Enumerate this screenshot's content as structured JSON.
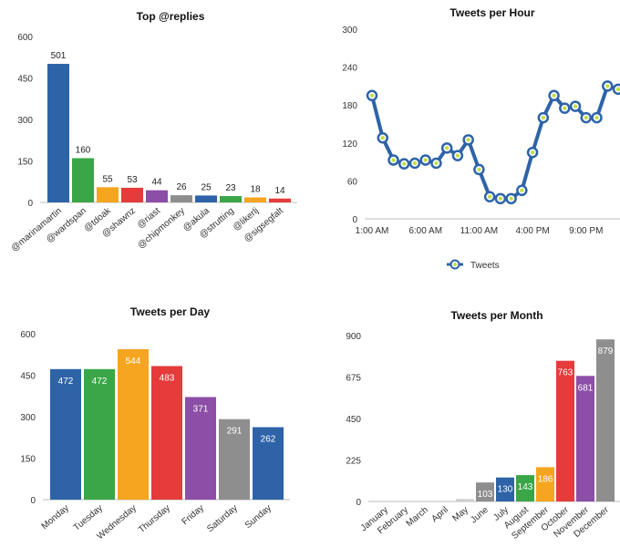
{
  "chart_data": [
    {
      "type": "bar",
      "title": "Top @replies",
      "categories": [
        "@marinamartin",
        "@wardspan",
        "@tdoak",
        "@shawnz",
        "@riast",
        "@chipmonkey",
        "@akula",
        "@strutting",
        "@likerlj",
        "@sigsegfalt"
      ],
      "values": [
        501,
        160,
        55,
        53,
        44,
        26,
        25,
        23,
        18,
        14
      ],
      "colors": [
        "#2e63a8",
        "#3aa648",
        "#f5a51f",
        "#e53b3b",
        "#8c4ea6",
        "#8e8e8e",
        "#2e63a8",
        "#3aa648",
        "#f5a51f",
        "#e53b3b"
      ],
      "yticks": [
        "0",
        "150",
        "300",
        "450",
        "600"
      ],
      "ylim": [
        0,
        600
      ],
      "xlabel": "",
      "ylabel": "",
      "grid": false
    },
    {
      "type": "line",
      "title": "Tweets per Hour",
      "x": [
        "1:00 AM",
        "2:00 AM",
        "3:00 AM",
        "4:00 AM",
        "5:00 AM",
        "6:00 AM",
        "7:00 AM",
        "8:00 AM",
        "9:00 AM",
        "10:00 AM",
        "11:00 AM",
        "12:00 PM",
        "1:00 PM",
        "2:00 PM",
        "3:00 PM",
        "4:00 PM",
        "5:00 PM",
        "6:00 PM",
        "7:00 PM",
        "8:00 PM",
        "9:00 PM",
        "10:00 PM",
        "11:00 PM",
        "12:00 AM"
      ],
      "xticks": [
        "1:00 AM",
        "6:00 AM",
        "11:00 AM",
        "4:00 PM",
        "9:00 PM"
      ],
      "series": [
        {
          "name": "Tweets",
          "values": [
            195,
            128,
            93,
            87,
            88,
            93,
            88,
            112,
            100,
            125,
            78,
            35,
            32,
            32,
            45,
            105,
            160,
            195,
            175,
            178,
            160,
            160,
            210,
            205
          ]
        }
      ],
      "yticks": [
        "0",
        "60",
        "120",
        "180",
        "240",
        "300"
      ],
      "ylim": [
        0,
        300
      ],
      "legend": "bottom",
      "xlabel": "",
      "ylabel": "",
      "grid": false
    },
    {
      "type": "bar",
      "title": "Tweets per Day",
      "categories": [
        "Monday",
        "Tuesday",
        "Wednesday",
        "Thursday",
        "Friday",
        "Saturday",
        "Sunday"
      ],
      "values": [
        472,
        472,
        544,
        483,
        371,
        291,
        262
      ],
      "colors": [
        "#2e63a8",
        "#3aa648",
        "#f5a51f",
        "#e53b3b",
        "#8c4ea6",
        "#8e8e8e",
        "#2e63a8"
      ],
      "yticks": [
        "0",
        "150",
        "300",
        "450",
        "600"
      ],
      "ylim": [
        0,
        600
      ],
      "xlabel": "",
      "ylabel": "",
      "grid": false
    },
    {
      "type": "bar",
      "title": "Tweets per Month",
      "categories": [
        "January",
        "February",
        "March",
        "April",
        "May",
        "June",
        "July",
        "August",
        "September",
        "October",
        "November",
        "December"
      ],
      "values": [
        0,
        0,
        0,
        0,
        13,
        103,
        130,
        143,
        186,
        763,
        681,
        879
      ],
      "data_labels": [
        "",
        "",
        "",
        "",
        "",
        "103",
        "130",
        "143",
        "186",
        "763",
        "681",
        "879"
      ],
      "colors": [
        "#cccccc",
        "#cccccc",
        "#cccccc",
        "#cccccc",
        "#cccccc",
        "#8e8e8e",
        "#2e63a8",
        "#3aa648",
        "#f5a51f",
        "#e53b3b",
        "#8c4ea6",
        "#8e8e8e"
      ],
      "yticks": [
        "0",
        "225",
        "450",
        "675",
        "900"
      ],
      "ylim": [
        0,
        900
      ],
      "xlabel": "",
      "ylabel": "",
      "grid": false
    }
  ]
}
